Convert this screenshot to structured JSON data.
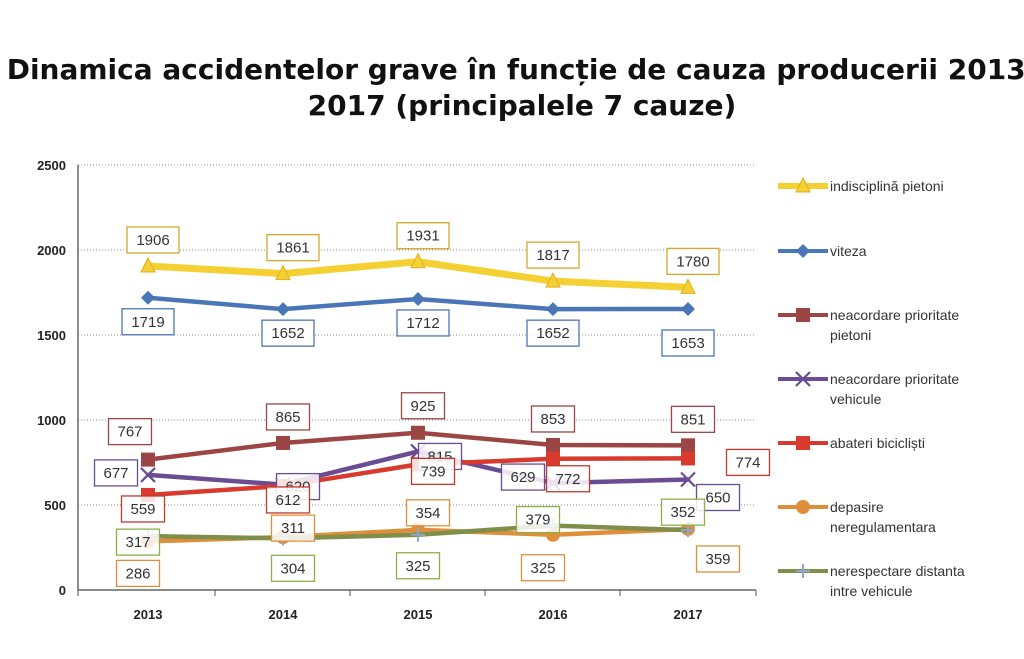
{
  "chart_data": {
    "type": "line",
    "title": "Dinamica accidentelor grave în funcție de cauza producerii 2013-2017 (principalele 7 cauze)",
    "categories": [
      "2013",
      "2014",
      "2015",
      "2016",
      "2017"
    ],
    "ylim": [
      0,
      2500
    ],
    "yticks": [
      0,
      500,
      1000,
      1500,
      2000,
      2500
    ],
    "grid": true,
    "legend_position": "right",
    "series": [
      {
        "name": "indisciplină pietoni",
        "legend_lines": [
          "indisciplină pietoni"
        ],
        "values": [
          1906,
          1861,
          1931,
          1817,
          1780
        ],
        "color": "#f5d033",
        "marker": "triangle",
        "label_color": "#d4a72c",
        "label_pos": "above"
      },
      {
        "name": "viteza",
        "legend_lines": [
          "viteza"
        ],
        "values": [
          1719,
          1652,
          1712,
          1652,
          1653
        ],
        "color": "#4a76b7",
        "marker": "diamond",
        "label_color": "#4a76b7",
        "label_pos": "below"
      },
      {
        "name": "neacordare prioritate pietoni",
        "legend_lines": [
          "neacordare prioritate",
          "pietoni"
        ],
        "values": [
          767,
          865,
          925,
          853,
          851
        ],
        "color": "#9c4545",
        "marker": "square",
        "label_color": "#9c4545",
        "label_pos": "above"
      },
      {
        "name": "neacordare prioritate vehicule",
        "legend_lines": [
          "neacordare prioritate",
          "vehicule"
        ],
        "values": [
          677,
          620,
          815,
          629,
          650
        ],
        "color": "#6a4c93",
        "marker": "x",
        "label_color": "#6a4c93",
        "label_pos": "mixed"
      },
      {
        "name": "abateri bicicliști",
        "legend_lines": [
          "abateri bicicliști"
        ],
        "values": [
          559,
          612,
          739,
          772,
          774
        ],
        "color": "#d93a2e",
        "marker": "square",
        "label_color": "#c0392b",
        "label_pos": "mixed"
      },
      {
        "name": "depasire neregulamentara",
        "legend_lines": [
          "depasire",
          "neregulamentara"
        ],
        "values": [
          286,
          311,
          354,
          325,
          359
        ],
        "color": "#e08e3a",
        "marker": "circle",
        "label_color": "#e08e3a",
        "label_pos": "mixed"
      },
      {
        "name": "nerespectare distanta intre vehicule",
        "legend_lines": [
          "nerespectare distanta",
          "intre vehicule"
        ],
        "values": [
          317,
          304,
          325,
          379,
          352
        ],
        "color": "#7f8f4a",
        "marker": "plus",
        "label_color": "#8bb04a",
        "label_pos": "mixed"
      }
    ]
  }
}
